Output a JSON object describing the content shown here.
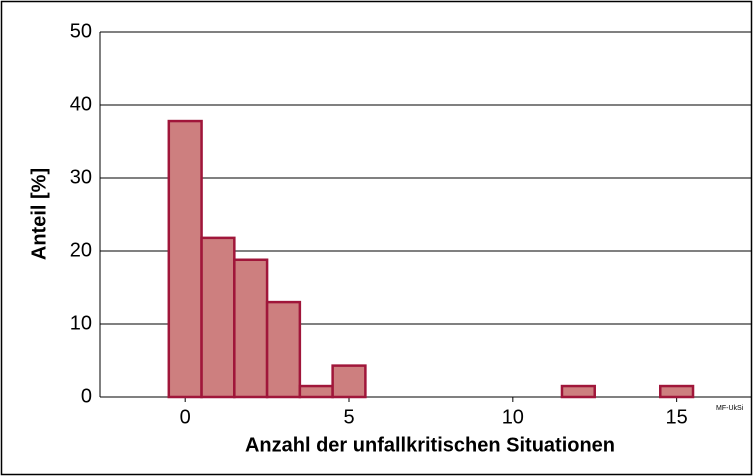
{
  "chart_data": {
    "type": "histogram",
    "xlabel": "Anzahl der unfallkritischen Situationen",
    "ylabel": "Anteil [%]",
    "annotation": "MF-UkSi",
    "bins": [
      -0.5,
      0.5,
      1.5,
      2.5,
      3.5,
      4.5,
      5.5,
      6.5,
      7.5,
      8.5,
      9.5,
      10.5,
      11.5,
      12.5,
      13.5,
      14.5,
      15.5
    ],
    "values": [
      37.8,
      21.8,
      18.8,
      13,
      1.5,
      4.3,
      0,
      0,
      0,
      0,
      0,
      0,
      1.5,
      0,
      0,
      1.5
    ],
    "color": "#cd7f7f",
    "edgecolor": "#a0163a",
    "xlim": [
      -2.6,
      17.3
    ],
    "xticks": [
      0,
      5,
      10,
      15
    ],
    "ylim": [
      0,
      50
    ],
    "yticks": [
      0,
      10,
      20,
      30,
      40,
      50
    ],
    "grid": true
  }
}
